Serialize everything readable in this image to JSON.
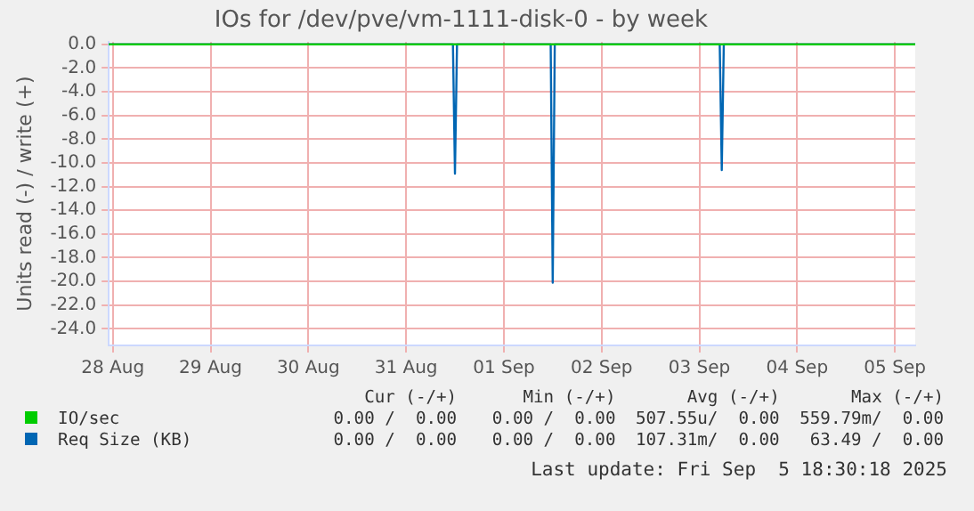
{
  "chart_data": {
    "type": "line",
    "title": "IOs for /dev/pve/vm-1111-disk-0 - by week",
    "ylabel": "Units read (-) / write (+)",
    "x": [
      "2025-08-28T11:00",
      "2025-09-05T17:00"
    ],
    "series": [
      {
        "name": "IO/sec",
        "color": "#00cc00",
        "values": [
          0,
          0
        ]
      },
      {
        "name": "Req Size (KB)",
        "color": "#0066b3",
        "x": [
          "2025-08-28T11:00",
          "2025-08-31T23:30",
          "2025-09-01T00:00",
          "2025-09-01T00:30",
          "2025-09-01T23:30",
          "2025-09-02T00:00",
          "2025-09-02T00:30",
          "2025-09-03T17:00",
          "2025-09-03T17:30",
          "2025-09-03T18:00",
          "2025-09-05T17:00"
        ],
        "values": [
          0,
          0,
          -10.9,
          0,
          0,
          -20.1,
          0,
          0,
          -10.6,
          0,
          0
        ]
      }
    ],
    "xlim": [
      "2025-08-28T11:00",
      "2025-09-05T17:00"
    ],
    "xticks": [
      {
        "value": "2025-08-28T12:00",
        "label": "28 Aug"
      },
      {
        "value": "2025-08-29T12:00",
        "label": "29 Aug"
      },
      {
        "value": "2025-08-30T12:00",
        "label": "30 Aug"
      },
      {
        "value": "2025-08-31T12:00",
        "label": "31 Aug"
      },
      {
        "value": "2025-09-01T12:00",
        "label": "01 Sep"
      },
      {
        "value": "2025-09-02T12:00",
        "label": "02 Sep"
      },
      {
        "value": "2025-09-03T12:00",
        "label": "03 Sep"
      },
      {
        "value": "2025-09-04T12:00",
        "label": "04 Sep"
      },
      {
        "value": "2025-09-05T12:00",
        "label": "05 Sep"
      }
    ],
    "ylim": [
      -25.4,
      0.2
    ],
    "yticks": [
      {
        "value": 0,
        "label": "0.0"
      },
      {
        "value": -2,
        "label": "-2.0"
      },
      {
        "value": -4,
        "label": "-4.0"
      },
      {
        "value": -6,
        "label": "-6.0"
      },
      {
        "value": -8,
        "label": "-8.0"
      },
      {
        "value": -10,
        "label": "-10.0"
      },
      {
        "value": -12,
        "label": "-12.0"
      },
      {
        "value": -14,
        "label": "-14.0"
      },
      {
        "value": -16,
        "label": "-16.0"
      },
      {
        "value": -18,
        "label": "-18.0"
      },
      {
        "value": -20,
        "label": "-20.0"
      },
      {
        "value": -22,
        "label": "-22.0"
      },
      {
        "value": -24,
        "label": "-24.0"
      }
    ],
    "grid": true,
    "legend": "bottom",
    "marker": "none",
    "line_style": "solid",
    "annotations": [
      "Cur (-/+)",
      "Min (-/+)",
      "Avg (-/+)",
      "Max (-/+)",
      "0.00 /  0.00",
      "0.00 /  0.00",
      "507.55u/  0.00",
      "559.79m/  0.00",
      "0.00 /  0.00",
      "0.00 /  0.00",
      "107.31m/  0.00",
      "63.49 /  0.00",
      "Last update: Fri Sep  5 18:30:18 2025"
    ]
  }
}
